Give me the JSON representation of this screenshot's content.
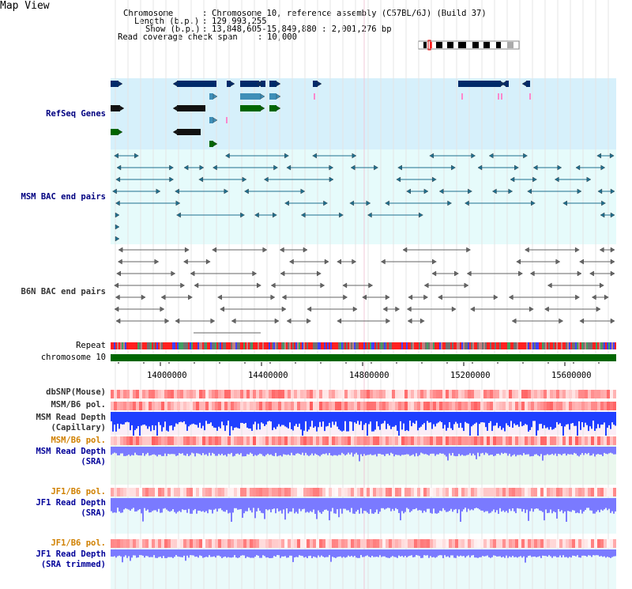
{
  "title": "Map View",
  "header": {
    "chromosome_label": "Chromosome",
    "chromosome_value": "Chromosome 10, reference assembly (C57BL/6J) (Build 37)",
    "length_label": "Length (b.p.)",
    "length_value": "129,993,255",
    "show_label": "Show (b.p.)",
    "show_value": "13,848,605-15,849,880 : 2,001,276 bp",
    "coverage_label": "Read coverage check span",
    "coverage_value": "10,000",
    "sep": ":"
  },
  "tracks": {
    "refseq": "RefSeq Genes",
    "msm_bac": "MSM BAC end pairs",
    "b6n_bac": "B6N BAC end pairs",
    "repeat": "Repeat",
    "chromosome": "chromosome 10",
    "dbsnp": "dbSNP(Mouse)",
    "msm_b6_pol_1": "MSM/B6 pol.",
    "msm_read_depth_cap_1": "MSM Read Depth",
    "msm_read_depth_cap_2": "(Capillary)",
    "msm_b6_pol_2": "MSM/B6 pol.",
    "msm_read_depth_sra_1": "MSM Read Depth",
    "msm_read_depth_sra_2": "(SRA)",
    "jf1_b6_pol_1": "JF1/B6 pol.",
    "jf1_read_depth_sra_1": "JF1 Read Depth",
    "jf1_read_depth_sra_2": "(SRA)",
    "jf1_b6_pol_2": "JF1/B6 pol.",
    "jf1_read_depth_trim_1": "JF1 Read Depth",
    "jf1_read_depth_trim_2": "(SRA trimmed)"
  },
  "axis": {
    "ticks": [
      "14000000",
      "14400000",
      "14800000",
      "15200000",
      "15600000"
    ]
  },
  "colors": {
    "refseq_bg": "#d6f0fb",
    "bac_bg": "#e6fbfb",
    "gene_navy": "#002a6a",
    "gene_teal": "#3f8fb8",
    "gene_green": "#006600",
    "pink": "#ff88cc",
    "chrom_green": "#006600",
    "depth_blue": "#1f3fff",
    "depth_light": "#7a7aff"
  }
}
